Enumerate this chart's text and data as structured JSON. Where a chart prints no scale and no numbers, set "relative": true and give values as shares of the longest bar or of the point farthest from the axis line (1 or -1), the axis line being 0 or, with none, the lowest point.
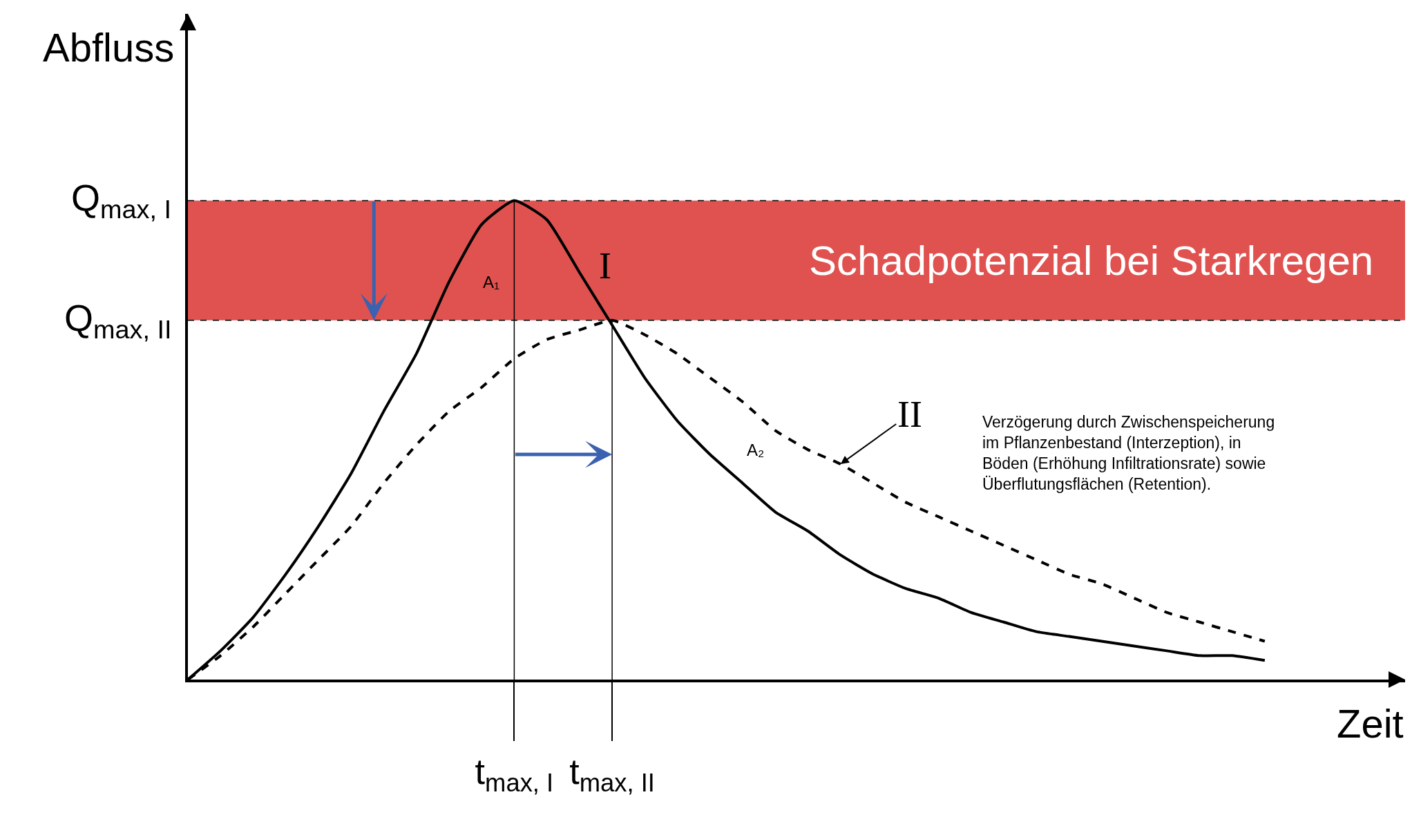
{
  "chart_data": {
    "type": "line",
    "xlabel": "Zeit",
    "ylabel": "Abfluss",
    "relative": true,
    "categories": [
      null,
      null,
      null,
      null,
      null,
      null,
      null,
      null,
      null,
      null,
      "t$_{max, I}$",
      null,
      null,
      "t$_{max, II}$",
      null,
      null,
      null,
      null,
      null,
      null,
      null,
      null,
      null,
      null,
      null,
      null,
      null,
      null,
      null,
      null,
      null,
      null,
      null,
      null
    ],
    "grid": "x",
    "legend": false,
    "marker": "none",
    "series": [
      {
        "name": "I",
        "color": "#000000",
        "line_style": "solid",
        "values": [
          0,
          0.06,
          0.13,
          0.22,
          0.32,
          0.43,
          0.56,
          0.68,
          0.83,
          0.95,
          1.0,
          0.96,
          0.85,
          0.74,
          0.63,
          0.54,
          0.47,
          0.41,
          0.35,
          0.31,
          0.26,
          0.22,
          0.19,
          0.17,
          0.14,
          0.12,
          0.1,
          0.09,
          0.08,
          0.07,
          0.06,
          0.05,
          0.05,
          0.04
        ]
      },
      {
        "name": "II",
        "color": "#000000",
        "line_style": "dashed",
        "values": [
          0,
          0.05,
          0.11,
          0.18,
          0.25,
          0.32,
          0.41,
          0.49,
          0.56,
          0.61,
          0.67,
          0.71,
          0.73,
          0.75,
          0.72,
          0.68,
          0.63,
          0.58,
          0.52,
          0.48,
          0.45,
          0.41,
          0.37,
          0.34,
          0.31,
          0.28,
          0.25,
          0.22,
          0.2,
          0.17,
          0.14,
          0.12,
          0.1,
          0.08
        ]
      }
    ],
    "ref_lines": [
      {
        "axis": "y",
        "value": 1,
        "label": "Q$_{max, I}$",
        "line_style": "dashed",
        "color": "#000000"
      },
      {
        "axis": "y",
        "value": 0.75,
        "label": "Q$_{max, II}$",
        "line_style": "dashed",
        "color": "#000000"
      }
    ],
    "bands": [
      {
        "axis": "y",
        "from": 0.75,
        "to": 1,
        "label": "Schadpotenzial bei Starkregen",
        "color": "#e0524f"
      }
    ],
    "annotations": [
      "A₁",
      "A₂",
      "Verzögerung durch Zwischenspeicherung\nim Pflanzenbestand (Interzeption), in\nBöden (Erhöhung Infiltrationsrate) sowie\nÜberflutungsflächen (Retention)."
    ]
  }
}
